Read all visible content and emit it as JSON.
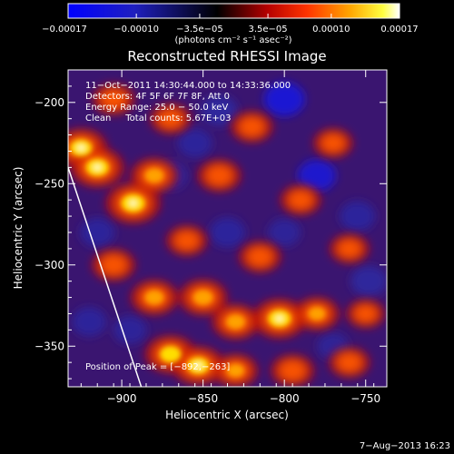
{
  "chart_data": {
    "type": "heatmap",
    "title": "Reconstructed RHESSI Image",
    "xlabel": "Heliocentric X (arcsec)",
    "ylabel": "Heliocentric Y (arcsec)",
    "xlim": [
      -933,
      -737
    ],
    "ylim": [
      -375,
      -180
    ],
    "x_ticks": [
      {
        "value": -900,
        "label": "−900"
      },
      {
        "value": -850,
        "label": "−850"
      },
      {
        "value": -800,
        "label": "−800"
      },
      {
        "value": -750,
        "label": "−750"
      }
    ],
    "y_ticks": [
      {
        "value": -200,
        "label": "−200"
      },
      {
        "value": -250,
        "label": "−250"
      },
      {
        "value": -300,
        "label": "−300"
      },
      {
        "value": -350,
        "label": "−350"
      }
    ],
    "colorbar": {
      "min": -0.00017,
      "max": 0.00017,
      "ticks": [
        {
          "value": -0.00017,
          "label": "−0.00017"
        },
        {
          "value": -0.0001,
          "label": "−0.00010"
        },
        {
          "value": -3.5e-05,
          "label": "−3.5e−05"
        },
        {
          "value": 3.5e-05,
          "label": "3.5e−05"
        },
        {
          "value": 0.0001,
          "label": "0.00010"
        },
        {
          "value": 0.00017,
          "label": "0.00017"
        }
      ],
      "unit": "(photons cm⁻² s⁻¹ asec⁻²)",
      "colors": [
        "#0000ff",
        "#000000",
        "#ff0000",
        "#ffa500",
        "#ffff00",
        "#ffffff"
      ]
    },
    "annotations": [
      "11−Oct−2011 14:30:44.000 to 14:33:36.000",
      "Detectors: 4F 5F 6F 7F 8F, Att 0",
      "Energy Range: 25.0 − 50.0 keV",
      "Clean     Total counts: 5.67E+03"
    ],
    "peak": {
      "label": "Position of Peak = [−892,−263]",
      "x": -892,
      "y": -263
    },
    "limb_line": [
      [
        -933,
        -240
      ],
      [
        -888,
        -375
      ]
    ],
    "sources": [
      {
        "x": -925,
        "y": -228,
        "intensity": 0.9
      },
      {
        "x": -915,
        "y": -240,
        "intensity": 0.95
      },
      {
        "x": -893,
        "y": -262,
        "intensity": 1.0
      },
      {
        "x": -880,
        "y": -245,
        "intensity": 0.7
      },
      {
        "x": -905,
        "y": -198,
        "intensity": 0.5
      },
      {
        "x": -870,
        "y": -210,
        "intensity": 0.45
      },
      {
        "x": -840,
        "y": -245,
        "intensity": 0.55
      },
      {
        "x": -820,
        "y": -215,
        "intensity": 0.5
      },
      {
        "x": -790,
        "y": -260,
        "intensity": 0.45
      },
      {
        "x": -770,
        "y": -225,
        "intensity": 0.4
      },
      {
        "x": -760,
        "y": -290,
        "intensity": 0.4
      },
      {
        "x": -905,
        "y": -300,
        "intensity": 0.55
      },
      {
        "x": -880,
        "y": -320,
        "intensity": 0.7
      },
      {
        "x": -850,
        "y": -320,
        "intensity": 0.75
      },
      {
        "x": -830,
        "y": -335,
        "intensity": 0.7
      },
      {
        "x": -803,
        "y": -333,
        "intensity": 0.95
      },
      {
        "x": -780,
        "y": -330,
        "intensity": 0.6
      },
      {
        "x": -870,
        "y": -355,
        "intensity": 0.85
      },
      {
        "x": -853,
        "y": -362,
        "intensity": 0.9
      },
      {
        "x": -830,
        "y": -365,
        "intensity": 0.6
      },
      {
        "x": -795,
        "y": -365,
        "intensity": 0.55
      },
      {
        "x": -760,
        "y": -360,
        "intensity": 0.45
      },
      {
        "x": -815,
        "y": -295,
        "intensity": 0.5
      },
      {
        "x": -860,
        "y": -285,
        "intensity": 0.45
      },
      {
        "x": -750,
        "y": -330,
        "intensity": 0.35
      }
    ],
    "negative_regions": [
      {
        "x": -800,
        "y": -198,
        "intensity": 0.85
      },
      {
        "x": -840,
        "y": -205,
        "intensity": 0.6
      },
      {
        "x": -855,
        "y": -225,
        "intensity": 0.5
      },
      {
        "x": -870,
        "y": -245,
        "intensity": 0.45
      },
      {
        "x": -780,
        "y": -245,
        "intensity": 0.7
      },
      {
        "x": -755,
        "y": -270,
        "intensity": 0.55
      },
      {
        "x": -748,
        "y": -310,
        "intensity": 0.6
      },
      {
        "x": -915,
        "y": -280,
        "intensity": 0.5
      },
      {
        "x": -835,
        "y": -280,
        "intensity": 0.55
      },
      {
        "x": -800,
        "y": -280,
        "intensity": 0.4
      },
      {
        "x": -895,
        "y": -340,
        "intensity": 0.45
      },
      {
        "x": -770,
        "y": -350,
        "intensity": 0.35
      },
      {
        "x": -920,
        "y": -335,
        "intensity": 0.5
      }
    ],
    "grid": false,
    "legend": "none"
  },
  "footer": {
    "date": "7−Aug−2013 16:23"
  }
}
